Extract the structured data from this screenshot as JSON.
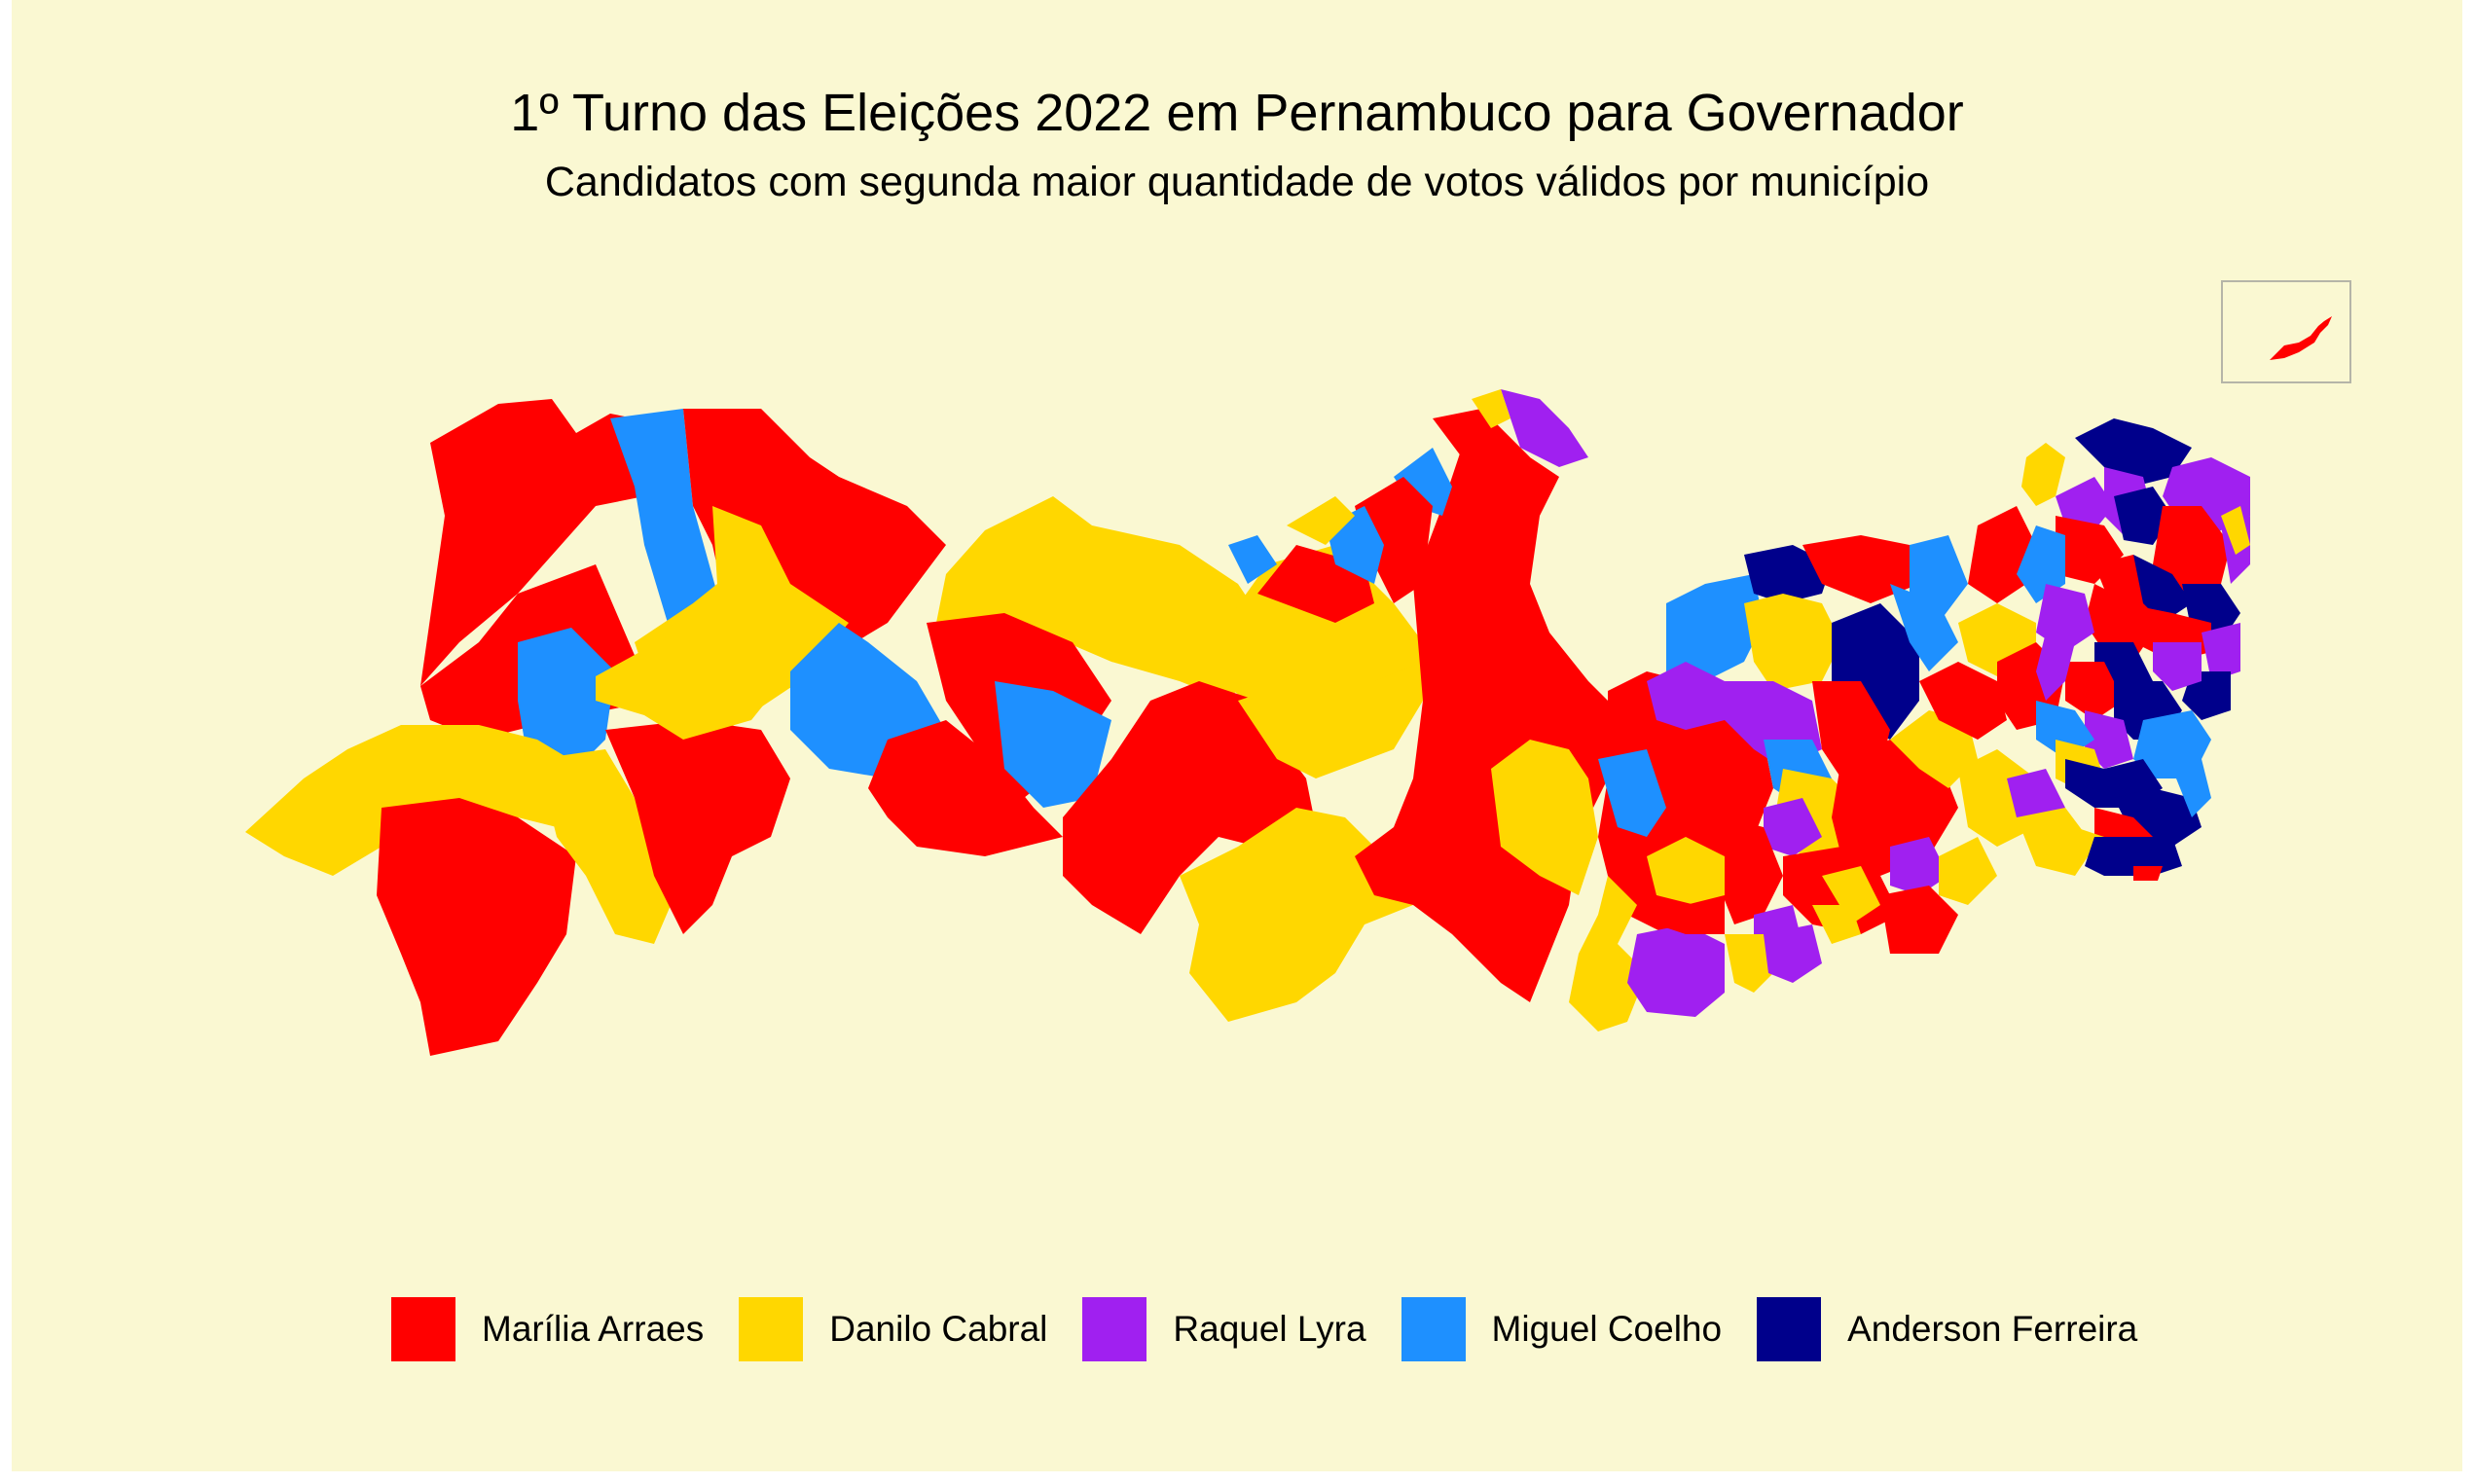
{
  "header": {
    "title": "1º Turno das Eleições 2022 em Pernambuco para Governador",
    "subtitle": "Candidatos com segunda maior quantidade de votos válidos por município"
  },
  "legend": [
    {
      "label": "Marília Arraes",
      "color": "#FF0000"
    },
    {
      "label": "Danilo Cabral",
      "color": "#FFD700"
    },
    {
      "label": "Raquel Lyra",
      "color": "#A020F0"
    },
    {
      "label": "Miguel Coelho",
      "color": "#1E90FF"
    },
    {
      "label": "Anderson Ferreira",
      "color": "#00008B"
    }
  ],
  "colors": {
    "background": "#FAF8D2",
    "inset_border": "#B5B5A8"
  }
}
